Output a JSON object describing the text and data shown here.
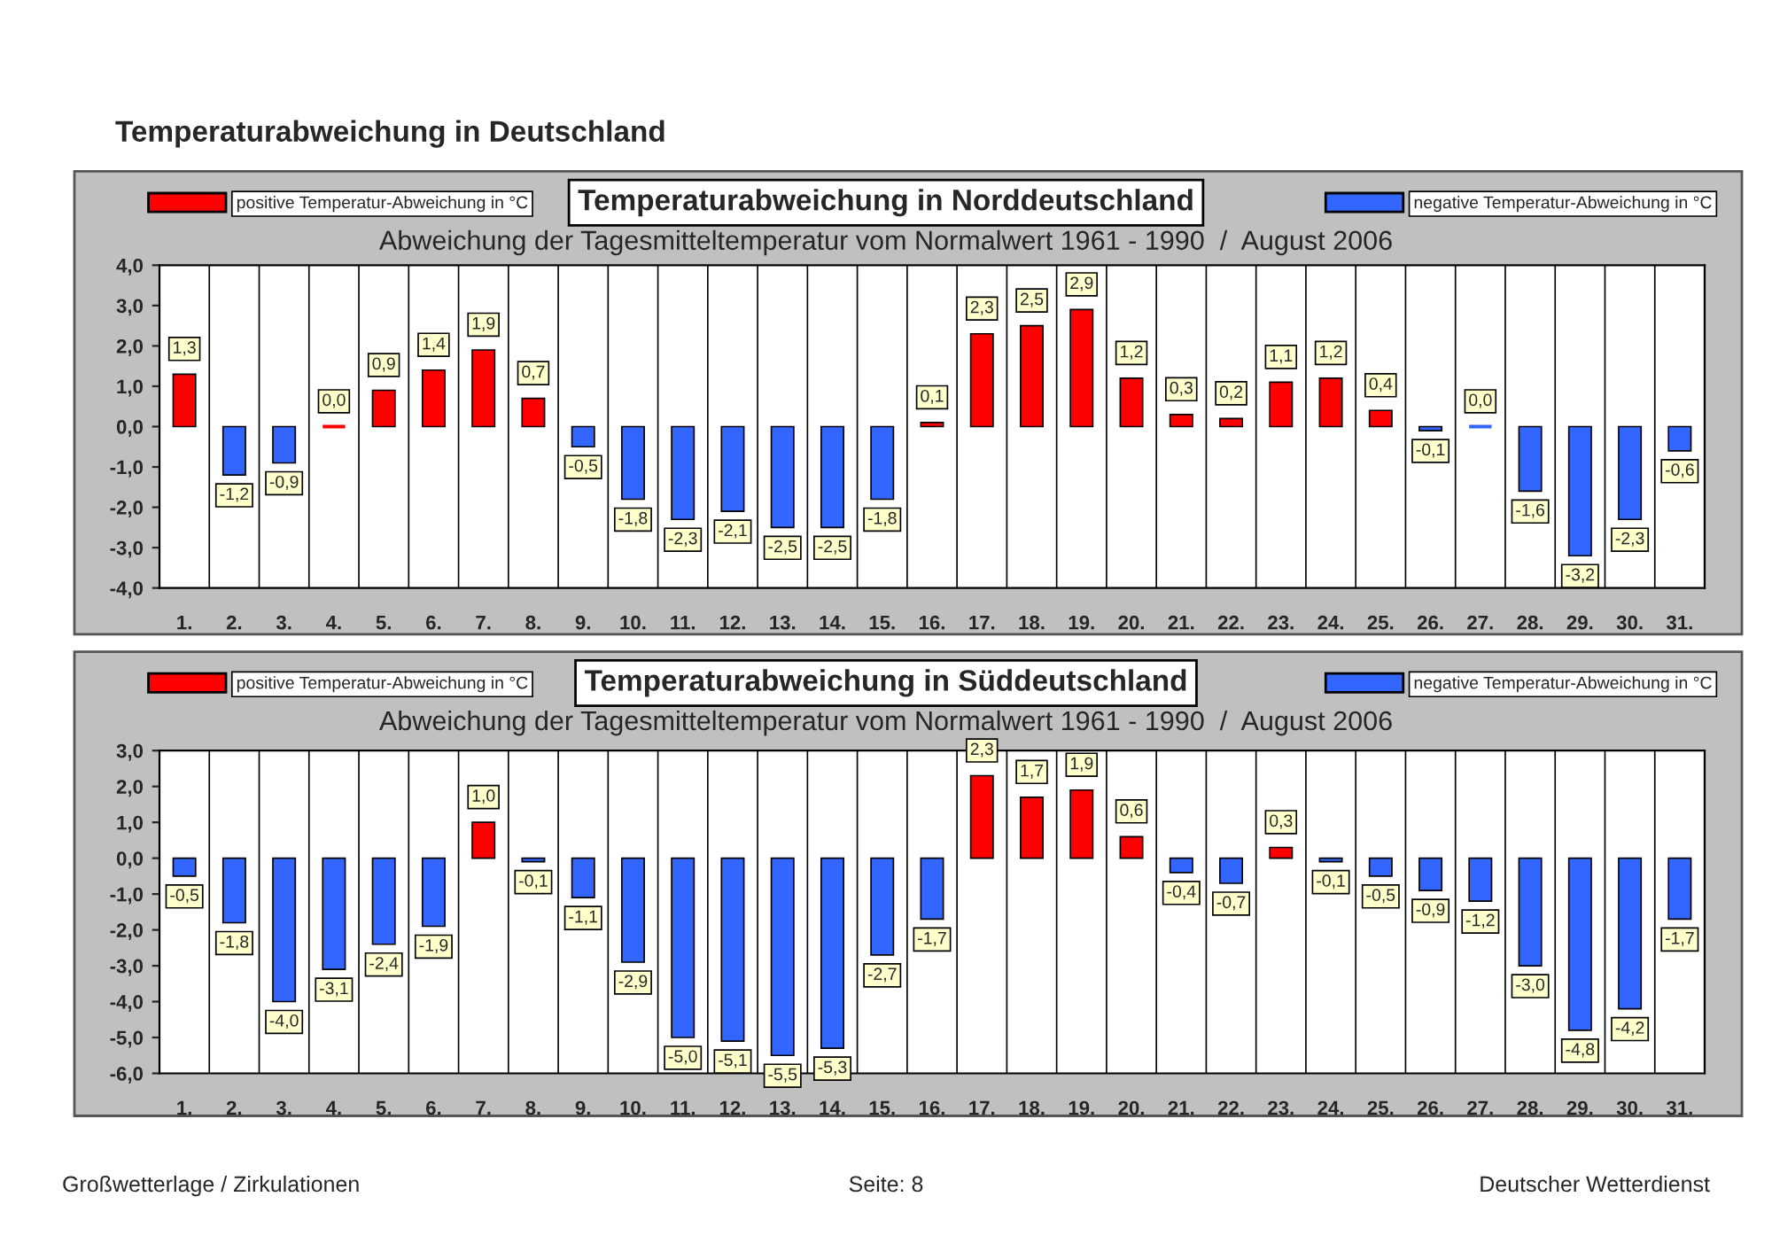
{
  "chart_data": [
    {
      "type": "bar",
      "title": "Temperaturabweichung in Norddeutschland",
      "subtitle": "Abweichung der Tagesmitteltemperatur vom Normalwert 1961 - 1990  /  August 2006",
      "annotations": [
        "Temperaturabweichung in Deutschland"
      ],
      "categories": [
        "1.",
        "2.",
        "3.",
        "4.",
        "5.",
        "6.",
        "7.",
        "8.",
        "9.",
        "10.",
        "11.",
        "12.",
        "13.",
        "14.",
        "15.",
        "16.",
        "17.",
        "18.",
        "19.",
        "20.",
        "21.",
        "22.",
        "23.",
        "24.",
        "25.",
        "26.",
        "27.",
        "28.",
        "29.",
        "30.",
        "31."
      ],
      "legend": "top",
      "grid": "x",
      "ylim": [
        -4,
        4
      ],
      "yticks": [
        {
          "value": -4,
          "label": "-4,0"
        },
        {
          "value": -3,
          "label": "-3,0"
        },
        {
          "value": -2,
          "label": "-2,0"
        },
        {
          "value": -1,
          "label": "-1,0"
        },
        {
          "value": 0,
          "label": "0,0"
        },
        {
          "value": 1,
          "label": "1,0"
        },
        {
          "value": 2,
          "label": "2,0"
        },
        {
          "value": 3,
          "label": "3,0"
        },
        {
          "value": 4,
          "label": "4,0"
        }
      ],
      "series": [
        {
          "name": "positive Temperatur-Abweichung in °C",
          "color": "#ff0000",
          "values": [
            1.3,
            null,
            null,
            0.0,
            0.9,
            1.4,
            1.9,
            0.7,
            null,
            null,
            null,
            null,
            null,
            null,
            null,
            0.1,
            2.3,
            2.5,
            2.9,
            1.2,
            0.3,
            0.2,
            1.1,
            1.2,
            0.4,
            null,
            null,
            null,
            null,
            null,
            null
          ],
          "value_labels": [
            "1,3",
            null,
            null,
            "0,0",
            "0,9",
            "1,4",
            "1,9",
            "0,7",
            null,
            null,
            null,
            null,
            null,
            null,
            null,
            "0,1",
            "2,3",
            "2,5",
            "2,9",
            "1,2",
            "0,3",
            "0,2",
            "1,1",
            "1,2",
            "0,4",
            null,
            null,
            null,
            null,
            null,
            null
          ]
        },
        {
          "name": "negative Temperatur-Abweichung in °C",
          "color": "#3366ff",
          "values": [
            null,
            -1.2,
            -0.9,
            null,
            null,
            null,
            null,
            null,
            -0.5,
            -1.8,
            -2.3,
            -2.1,
            -2.5,
            -2.5,
            -1.8,
            null,
            null,
            null,
            null,
            null,
            null,
            null,
            null,
            null,
            null,
            -0.1,
            0.0,
            -1.6,
            -3.2,
            -2.3,
            -0.6
          ],
          "value_labels": [
            null,
            "-1,2",
            "-0,9",
            null,
            null,
            null,
            null,
            null,
            "-0,5",
            "-1,8",
            "-2,3",
            "-2,1",
            "-2,5",
            "-2,5",
            "-1,8",
            null,
            null,
            null,
            null,
            null,
            null,
            null,
            null,
            null,
            null,
            "-0,1",
            "0,0",
            "-1,6",
            "-3,2",
            "-2,3",
            "-0,6"
          ]
        }
      ]
    },
    {
      "type": "bar",
      "title": "Temperaturabweichung in Süddeutschland",
      "subtitle": "Abweichung der Tagesmitteltemperatur vom Normalwert 1961 - 1990  /  August 2006",
      "annotations": [
        "Großwetterlage / Zirkulationen",
        "Seite: 8",
        "Deutscher Wetterdienst"
      ],
      "categories": [
        "1.",
        "2.",
        "3.",
        "4.",
        "5.",
        "6.",
        "7.",
        "8.",
        "9.",
        "10.",
        "11.",
        "12.",
        "13.",
        "14.",
        "15.",
        "16.",
        "17.",
        "18.",
        "19.",
        "20.",
        "21.",
        "22.",
        "23.",
        "24.",
        "25.",
        "26.",
        "27.",
        "28.",
        "29.",
        "30.",
        "31."
      ],
      "legend": "top",
      "grid": "x",
      "ylim": [
        -6,
        3
      ],
      "yticks": [
        {
          "value": -6,
          "label": "-6,0"
        },
        {
          "value": -5,
          "label": "-5,0"
        },
        {
          "value": -4,
          "label": "-4,0"
        },
        {
          "value": -3,
          "label": "-3,0"
        },
        {
          "value": -2,
          "label": "-2,0"
        },
        {
          "value": -1,
          "label": "-1,0"
        },
        {
          "value": 0,
          "label": "0,0"
        },
        {
          "value": 1,
          "label": "1,0"
        },
        {
          "value": 2,
          "label": "2,0"
        },
        {
          "value": 3,
          "label": "3,0"
        }
      ],
      "series": [
        {
          "name": "positive Temperatur-Abweichung in °C",
          "color": "#ff0000",
          "values": [
            null,
            null,
            null,
            null,
            null,
            null,
            1.0,
            null,
            null,
            null,
            null,
            null,
            null,
            null,
            null,
            null,
            2.3,
            1.7,
            1.9,
            0.6,
            null,
            null,
            0.3,
            null,
            null,
            null,
            null,
            null,
            null,
            null,
            null
          ],
          "value_labels": [
            null,
            null,
            null,
            null,
            null,
            null,
            "1,0",
            null,
            null,
            null,
            null,
            null,
            null,
            null,
            null,
            null,
            "2,3",
            "1,7",
            "1,9",
            "0,6",
            null,
            null,
            "0,3",
            null,
            null,
            null,
            null,
            null,
            null,
            null,
            null
          ]
        },
        {
          "name": "negative Temperatur-Abweichung in °C",
          "color": "#3366ff",
          "values": [
            -0.5,
            -1.8,
            -4.0,
            -3.1,
            -2.4,
            -1.9,
            null,
            -0.1,
            -1.1,
            -2.9,
            -5.0,
            -5.1,
            -5.5,
            -5.3,
            -2.7,
            -1.7,
            null,
            null,
            null,
            null,
            -0.4,
            -0.7,
            null,
            -0.1,
            -0.5,
            -0.9,
            -1.2,
            -3.0,
            -4.8,
            -4.2,
            -1.7
          ],
          "value_labels": [
            "-0,5",
            "-1,8",
            "-4,0",
            "-3,1",
            "-2,4",
            "-1,9",
            null,
            "-0,1",
            "-1,1",
            "-2,9",
            "-5,0",
            "-5,1",
            "-5,5",
            "-5,3",
            "-2,7",
            "-1,7",
            null,
            null,
            null,
            null,
            "-0,4",
            "-0,7",
            null,
            "-0,1",
            "-0,5",
            "-0,9",
            "-1,2",
            "-3,0",
            "-4,8",
            "-4,2",
            "-1,7"
          ]
        }
      ]
    }
  ]
}
